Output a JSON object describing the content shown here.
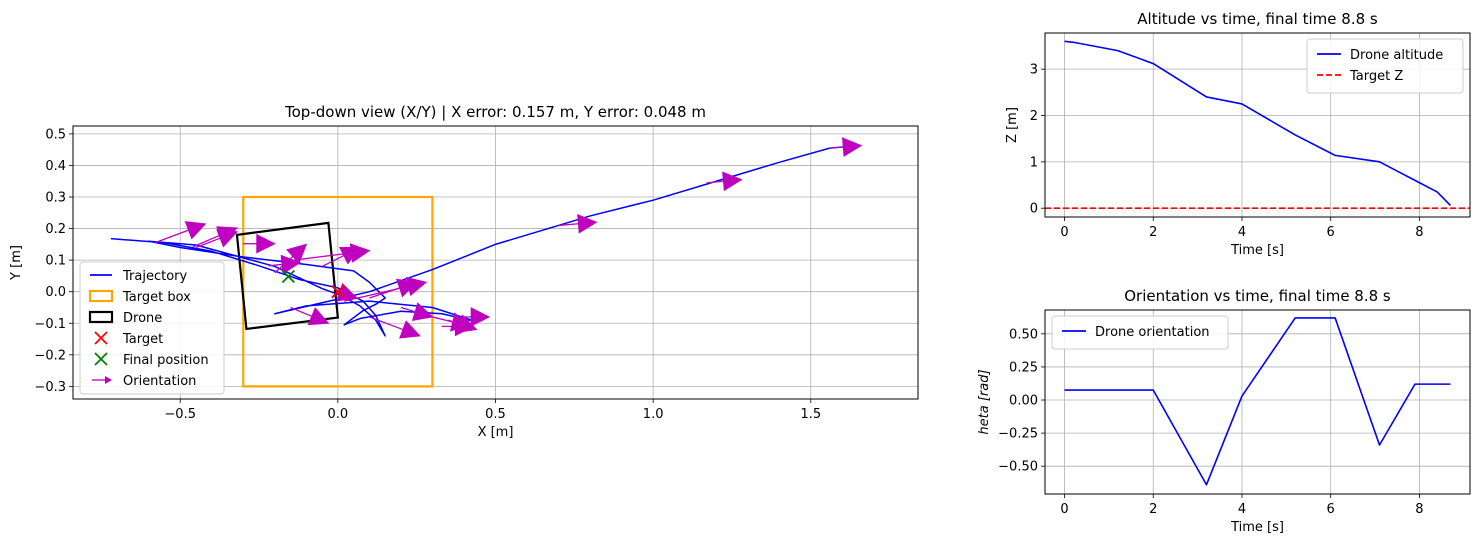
{
  "chart_data": [
    {
      "type": "line",
      "title": "Top-down view (X/Y) | X error: 0.157 m, Y error: 0.048 m",
      "xlabel": "X [m]",
      "ylabel": "Y [m]",
      "xlim": [
        -0.84,
        1.84
      ],
      "ylim": [
        -0.34,
        0.525
      ],
      "xticks": [
        -0.5,
        0.0,
        0.5,
        1.0,
        1.5
      ],
      "xtick_labels": [
        "−0.5",
        "0.0",
        "0.5",
        "1.0",
        "1.5"
      ],
      "yticks": [
        -0.3,
        -0.2,
        -0.1,
        0.0,
        0.1,
        0.2,
        0.3,
        0.4,
        0.5
      ],
      "ytick_labels": [
        "−0.3",
        "−0.2",
        "−0.1",
        "0.0",
        "0.1",
        "0.2",
        "0.3",
        "0.4",
        "0.5"
      ],
      "grid": true,
      "legend_position": "lower-left",
      "colors": {
        "trajectory": "#0000ff",
        "target_box": "#ffa500",
        "drone": "#000000",
        "target": "#ff0000",
        "final": "#008000",
        "orientation": "#bf00bf"
      },
      "legend": [
        "Trajectory",
        "Target box",
        "Drone",
        "Target",
        "Final position",
        "Orientation"
      ],
      "target_box": {
        "x": [
          -0.3,
          0.3
        ],
        "y": [
          -0.3,
          0.3
        ]
      },
      "drone_outline": [
        [
          -0.32,
          0.18
        ],
        [
          -0.03,
          0.218
        ],
        [
          0.0,
          -0.082
        ],
        [
          -0.29,
          -0.118
        ]
      ],
      "target_point": [
        0.0,
        0.0
      ],
      "final_position": [
        -0.157,
        0.048
      ],
      "trajectory": [
        [
          -0.72,
          0.168
        ],
        [
          -0.55,
          0.155
        ],
        [
          -0.4,
          0.128
        ],
        [
          -0.25,
          0.082
        ],
        [
          -0.12,
          0.038
        ],
        [
          0.0,
          0.012
        ],
        [
          0.08,
          -0.03
        ],
        [
          0.12,
          -0.075
        ],
        [
          0.15,
          -0.14
        ],
        [
          0.12,
          -0.09
        ],
        [
          0.07,
          -0.045
        ],
        [
          0.01,
          -0.012
        ],
        [
          -0.05,
          0.01
        ],
        [
          -0.2,
          0.08
        ],
        [
          -0.45,
          0.148
        ],
        [
          -0.6,
          0.16
        ],
        [
          -0.5,
          0.14
        ],
        [
          -0.3,
          0.11
        ],
        [
          -0.1,
          0.086
        ],
        [
          0.05,
          0.066
        ],
        [
          0.1,
          0.03
        ],
        [
          0.15,
          -0.02
        ],
        [
          0.12,
          -0.04
        ],
        [
          0.08,
          -0.06
        ],
        [
          0.02,
          -0.105
        ],
        [
          0.07,
          -0.085
        ],
        [
          0.2,
          -0.062
        ],
        [
          0.33,
          -0.07
        ],
        [
          0.44,
          -0.095
        ],
        [
          0.3,
          -0.05
        ],
        [
          0.1,
          -0.03
        ],
        [
          -0.1,
          -0.045
        ],
        [
          -0.2,
          -0.07
        ],
        [
          -0.05,
          -0.035
        ],
        [
          0.1,
          0.0
        ],
        [
          0.3,
          0.07
        ],
        [
          0.5,
          0.15
        ],
        [
          0.8,
          0.24
        ],
        [
          1.0,
          0.29
        ],
        [
          1.2,
          0.35
        ],
        [
          1.4,
          0.41
        ],
        [
          1.56,
          0.455
        ],
        [
          1.62,
          0.46
        ]
      ],
      "orientation_arrows": [
        [
          -0.58,
          0.155,
          0.16,
          0.06
        ],
        [
          -0.46,
          0.142,
          0.14,
          0.06
        ],
        [
          -0.45,
          0.14,
          0.13,
          0.05
        ],
        [
          -0.3,
          0.152,
          0.1,
          0.0
        ],
        [
          -0.22,
          0.082,
          0.1,
          0.01
        ],
        [
          -0.2,
          0.06,
          0.1,
          0.09
        ],
        [
          -0.05,
          0.08,
          0.12,
          0.06
        ],
        [
          -0.14,
          0.1,
          0.24,
          0.03
        ],
        [
          0.0,
          0.0,
          0.06,
          -0.02
        ],
        [
          0.02,
          -0.03,
          0.26,
          0.06
        ],
        [
          0.1,
          -0.02,
          0.15,
          0.05
        ],
        [
          -0.15,
          -0.05,
          0.12,
          -0.05
        ],
        [
          0.2,
          -0.05,
          0.1,
          -0.03
        ],
        [
          0.1,
          -0.08,
          0.16,
          -0.06
        ],
        [
          0.3,
          -0.08,
          0.12,
          -0.03
        ],
        [
          0.33,
          -0.11,
          0.1,
          0.0
        ],
        [
          0.35,
          -0.09,
          0.09,
          -0.03
        ],
        [
          0.4,
          -0.08,
          0.08,
          0.0
        ],
        [
          0.7,
          0.21,
          0.12,
          0.01
        ],
        [
          1.17,
          0.345,
          0.11,
          0.01
        ],
        [
          1.56,
          0.455,
          0.1,
          0.008
        ]
      ]
    },
    {
      "type": "line",
      "title": "Altitude vs time, final time 8.8 s",
      "xlabel": "Time [s]",
      "ylabel": "Z [m]",
      "xlim": [
        -0.44,
        9.14
      ],
      "ylim": [
        -0.19,
        3.78
      ],
      "xticks": [
        0,
        2,
        4,
        6,
        8
      ],
      "xtick_labels": [
        "0",
        "2",
        "4",
        "6",
        "8"
      ],
      "yticks": [
        0,
        1,
        2,
        3
      ],
      "ytick_labels": [
        "0",
        "1",
        "2",
        "3"
      ],
      "grid": true,
      "legend_position": "top-right",
      "series": [
        {
          "name": "Drone altitude",
          "color": "#0000ff",
          "dash": "solid",
          "x": [
            0,
            0.2,
            1.2,
            2.0,
            3.2,
            4.0,
            5.2,
            6.1,
            7.1,
            7.9,
            8.4,
            8.7
          ],
          "y": [
            3.6,
            3.58,
            3.4,
            3.12,
            2.4,
            2.25,
            1.58,
            1.14,
            1.0,
            0.6,
            0.35,
            0.06
          ]
        },
        {
          "name": "Target Z",
          "color": "#ff0000",
          "dash": "dashed",
          "x": [
            -0.44,
            9.14
          ],
          "y": [
            0,
            0
          ]
        }
      ]
    },
    {
      "type": "line",
      "title": "Orientation vs time, final time 8.8 s",
      "xlabel": "Time [s]",
      "ylabel": "$\theta$ [rad]",
      "ylabel_rendered": "heta [rad]",
      "xlim": [
        -0.44,
        9.14
      ],
      "ylim": [
        -0.71,
        0.68
      ],
      "xticks": [
        0,
        2,
        4,
        6,
        8
      ],
      "xtick_labels": [
        "0",
        "2",
        "4",
        "6",
        "8"
      ],
      "yticks": [
        -0.5,
        -0.25,
        0.0,
        0.25,
        0.5
      ],
      "ytick_labels": [
        "−0.50",
        "−0.25",
        "0.00",
        "0.25",
        "0.50"
      ],
      "grid": true,
      "legend_position": "top-left",
      "series": [
        {
          "name": "Drone orientation",
          "color": "#0000ff",
          "dash": "solid",
          "x": [
            0,
            2.0,
            3.2,
            4.0,
            5.2,
            6.1,
            7.1,
            7.9,
            8.7
          ],
          "y": [
            0.075,
            0.075,
            -0.64,
            0.03,
            0.62,
            0.62,
            -0.34,
            0.12,
            0.12
          ]
        }
      ]
    }
  ]
}
